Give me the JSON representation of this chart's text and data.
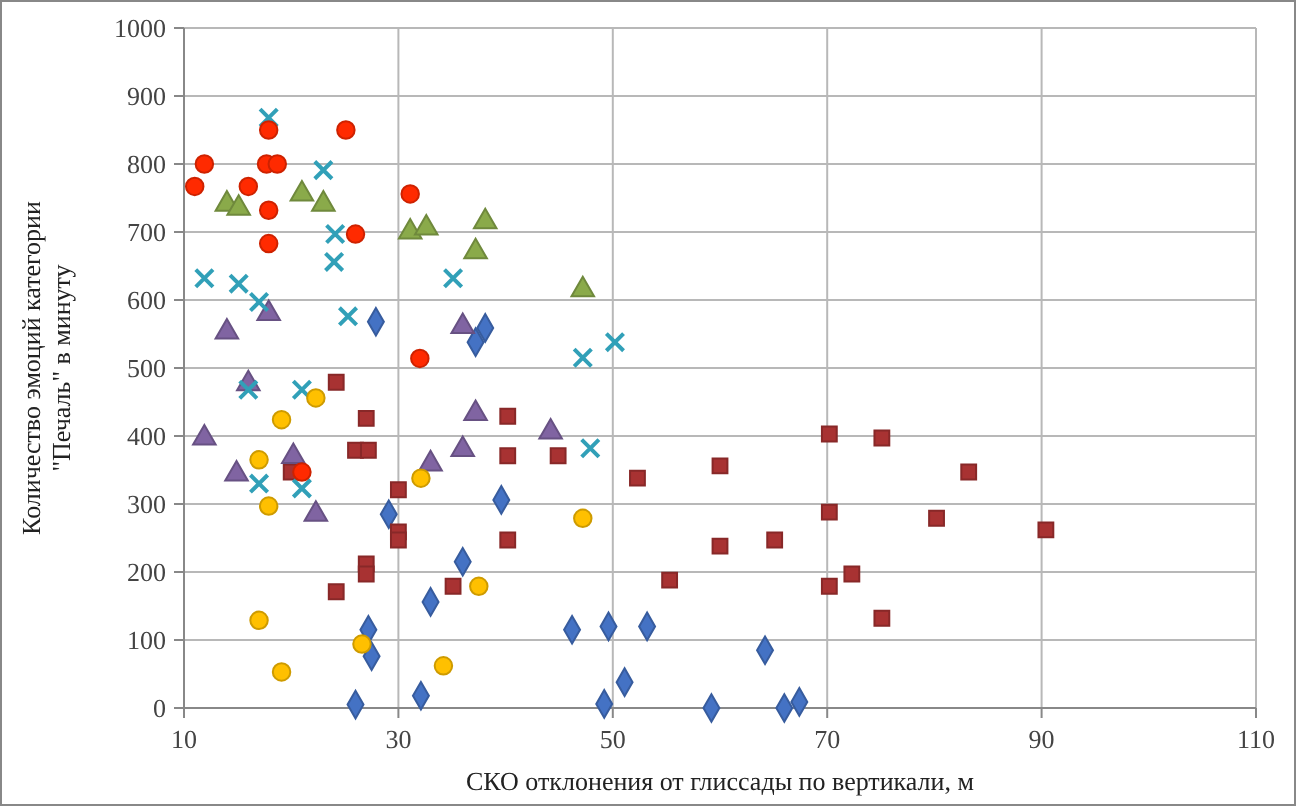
{
  "chart_data": {
    "type": "scatter",
    "xlabel": "СКО отклонения от глиссады по вертикали, м",
    "ylabel": "Количество эмоций категории\n\"Печаль\" в минуту",
    "xlim": [
      10,
      110
    ],
    "xticks": [
      10,
      30,
      50,
      70,
      90,
      110
    ],
    "ylim": [
      0,
      1000
    ],
    "yticks": [
      0,
      100,
      200,
      300,
      400,
      500,
      600,
      700,
      800,
      900,
      1000
    ],
    "grid": true,
    "series": [
      {
        "color": "#4472c4",
        "marker": "diamond",
        "x": [
          27.9,
          38.1,
          37.2,
          39.6,
          29.1,
          36,
          33,
          27.2,
          27.5,
          26,
          32.1,
          46.2,
          49.6,
          53.2,
          51.1,
          49.2,
          59.2,
          64.2,
          66,
          67.4
        ],
        "values": [
          568,
          559,
          538,
          306,
          285,
          215,
          156,
          115,
          76,
          5,
          18,
          115,
          120,
          120,
          38,
          6,
          0,
          85,
          0,
          9
        ]
      },
      {
        "color": "#a83232",
        "marker": "square",
        "x": [
          24.2,
          27,
          26,
          27.2,
          20,
          30,
          30,
          30,
          27,
          27,
          24.2,
          35.1,
          40.2,
          40.2,
          40.2,
          44.9,
          52.3,
          60,
          60,
          55.3,
          65.1,
          70.2,
          75.1,
          70.2,
          70.2,
          72.3,
          75.1,
          83.2,
          80.2,
          90.4
        ],
        "values": [
          479,
          426,
          379,
          379,
          347,
          321,
          259,
          247,
          212,
          197,
          171,
          179,
          429,
          371,
          247,
          371,
          338,
          356,
          238,
          188,
          247,
          403,
          397,
          288,
          179,
          197,
          132,
          347,
          279,
          262
        ]
      },
      {
        "color": "#8064a2",
        "marker": "triangle",
        "x": [
          14,
          17.9,
          36,
          16,
          11.9,
          20.2,
          14.9,
          22.3,
          37.2,
          36,
          33,
          44.2
        ],
        "values": [
          553,
          580,
          561,
          477,
          397,
          370,
          344,
          285,
          433,
          380,
          359,
          406
        ]
      },
      {
        "color": "#31a0b8",
        "marker": "cross",
        "x": [
          17.9,
          23,
          24.1,
          24,
          11.9,
          15.1,
          17,
          25.3,
          35.1,
          47.2,
          50.2,
          16,
          21,
          17,
          21,
          47.9
        ],
        "values": [
          868,
          791,
          697,
          656,
          632,
          624,
          597,
          576,
          632,
          515,
          538,
          468,
          468,
          330,
          323,
          382
        ]
      },
      {
        "color": "#8aaa4a",
        "marker": "triangle",
        "x": [
          14,
          15.1,
          21,
          23,
          31.1,
          32.6,
          38.1,
          37.2,
          47.2
        ],
        "values": [
          741,
          735,
          756,
          741,
          700,
          706,
          715,
          671,
          615
        ]
      },
      {
        "color": "#ff2a00",
        "marker": "circle",
        "x": [
          11,
          11.9,
          16,
          17.9,
          17.7,
          18.7,
          17.9,
          17.9,
          25.1,
          26,
          31.1,
          32,
          21
        ],
        "values": [
          767,
          800,
          767,
          850,
          800,
          800,
          732,
          683,
          850,
          697,
          756,
          514,
          347
        ]
      },
      {
        "color": "#ffc000",
        "marker": "circle",
        "x": [
          22.3,
          19.1,
          17,
          17.9,
          32.1,
          37.5,
          17,
          26.6,
          19.1,
          34.2,
          47.2
        ],
        "values": [
          456,
          424,
          365,
          297,
          338,
          179,
          129,
          94,
          53,
          62,
          279
        ]
      }
    ]
  }
}
